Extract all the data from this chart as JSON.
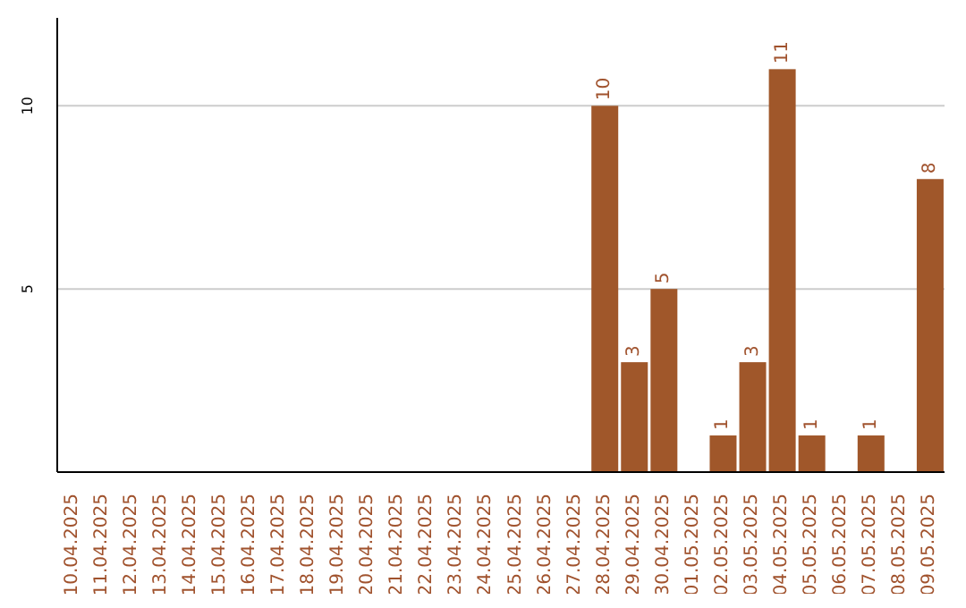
{
  "chart_data": {
    "type": "bar",
    "categories": [
      "10.04.2025",
      "11.04.2025",
      "12.04.2025",
      "13.04.2025",
      "14.04.2025",
      "15.04.2025",
      "16.04.2025",
      "17.04.2025",
      "18.04.2025",
      "19.04.2025",
      "20.04.2025",
      "21.04.2025",
      "22.04.2025",
      "23.04.2025",
      "24.04.2025",
      "25.04.2025",
      "26.04.2025",
      "27.04.2025",
      "28.04.2025",
      "29.04.2025",
      "30.04.2025",
      "01.05.2025",
      "02.05.2025",
      "03.05.2025",
      "04.05.2025",
      "05.05.2025",
      "06.05.2025",
      "07.05.2025",
      "08.05.2025",
      "09.05.2025"
    ],
    "values": [
      0,
      0,
      0,
      0,
      0,
      0,
      0,
      0,
      0,
      0,
      0,
      0,
      0,
      0,
      0,
      0,
      0,
      0,
      10,
      3,
      5,
      0,
      1,
      3,
      11,
      1,
      0,
      1,
      0,
      8
    ],
    "value_labels": [
      null,
      null,
      null,
      null,
      null,
      null,
      null,
      null,
      null,
      null,
      null,
      null,
      null,
      null,
      null,
      null,
      null,
      null,
      "10",
      "3",
      "5",
      null,
      "1",
      "3",
      "11",
      "1",
      null,
      "1",
      null,
      "8"
    ],
    "color": "#a0572a",
    "ylim": [
      0,
      12.4
    ],
    "yticks": [
      5,
      10
    ],
    "grid": "y"
  }
}
